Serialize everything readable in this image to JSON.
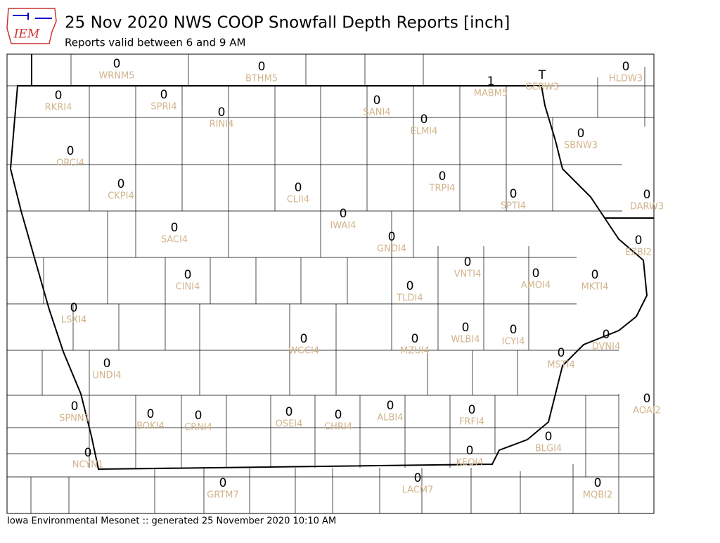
{
  "header": {
    "logo": "IEM",
    "title": "25 Nov 2020 NWS COOP Snowfall Depth Reports [inch]",
    "subtitle": "Reports valid between 6 and 9 AM"
  },
  "stations": [
    {
      "id": "WRNM5",
      "value": "0"
    },
    {
      "id": "BTHM5",
      "value": "0"
    },
    {
      "id": "MABM5",
      "value": "1"
    },
    {
      "id": "GERW3",
      "value": "T"
    },
    {
      "id": "HLDW3",
      "value": "0"
    },
    {
      "id": "RKRI4",
      "value": "0"
    },
    {
      "id": "SPRI4",
      "value": "0"
    },
    {
      "id": "RINI4",
      "value": "0"
    },
    {
      "id": "SANI4",
      "value": "0"
    },
    {
      "id": "ELMI4",
      "value": "0"
    },
    {
      "id": "SBNW3",
      "value": "0"
    },
    {
      "id": "ORCI4",
      "value": "0"
    },
    {
      "id": "CKPI4",
      "value": "0"
    },
    {
      "id": "TRPI4",
      "value": "0"
    },
    {
      "id": "CLII4",
      "value": "0"
    },
    {
      "id": "SPTI4",
      "value": "0"
    },
    {
      "id": "DARW3",
      "value": "0"
    },
    {
      "id": "IWAI4",
      "value": "0"
    },
    {
      "id": "SACI4",
      "value": "0"
    },
    {
      "id": "GNDI4",
      "value": "0"
    },
    {
      "id": "EZBI2",
      "value": "0"
    },
    {
      "id": "VNTI4",
      "value": "0"
    },
    {
      "id": "AMOI4",
      "value": "0"
    },
    {
      "id": "MKTI4",
      "value": "0"
    },
    {
      "id": "CINI4",
      "value": "0"
    },
    {
      "id": "TLDI4",
      "value": "0"
    },
    {
      "id": "LSXI4",
      "value": "0"
    },
    {
      "id": "WLBI4",
      "value": "0"
    },
    {
      "id": "ICYI4",
      "value": "0"
    },
    {
      "id": "DVNI4",
      "value": "0"
    },
    {
      "id": "WGCI4",
      "value": "0"
    },
    {
      "id": "MZUI4",
      "value": "0"
    },
    {
      "id": "MSTI4",
      "value": "0"
    },
    {
      "id": "UNDI4",
      "value": "0"
    },
    {
      "id": "AOAI2",
      "value": "0"
    },
    {
      "id": "SPNN1",
      "value": "0"
    },
    {
      "id": "ALBI4",
      "value": "0"
    },
    {
      "id": "FRFI4",
      "value": "0"
    },
    {
      "id": "BOKI4",
      "value": "0"
    },
    {
      "id": "CRNI4",
      "value": "0"
    },
    {
      "id": "OSEI4",
      "value": "0"
    },
    {
      "id": "CHRI4",
      "value": "0"
    },
    {
      "id": "BLGI4",
      "value": "0"
    },
    {
      "id": "NCYN1",
      "value": "0"
    },
    {
      "id": "KEOI4",
      "value": "0"
    },
    {
      "id": "LACM7",
      "value": "0"
    },
    {
      "id": "GRTM7",
      "value": "0"
    },
    {
      "id": "MQBI2",
      "value": "0"
    }
  ],
  "footer": "Iowa Environmental Mesonet :: generated 25 November 2020 10:10 AM"
}
